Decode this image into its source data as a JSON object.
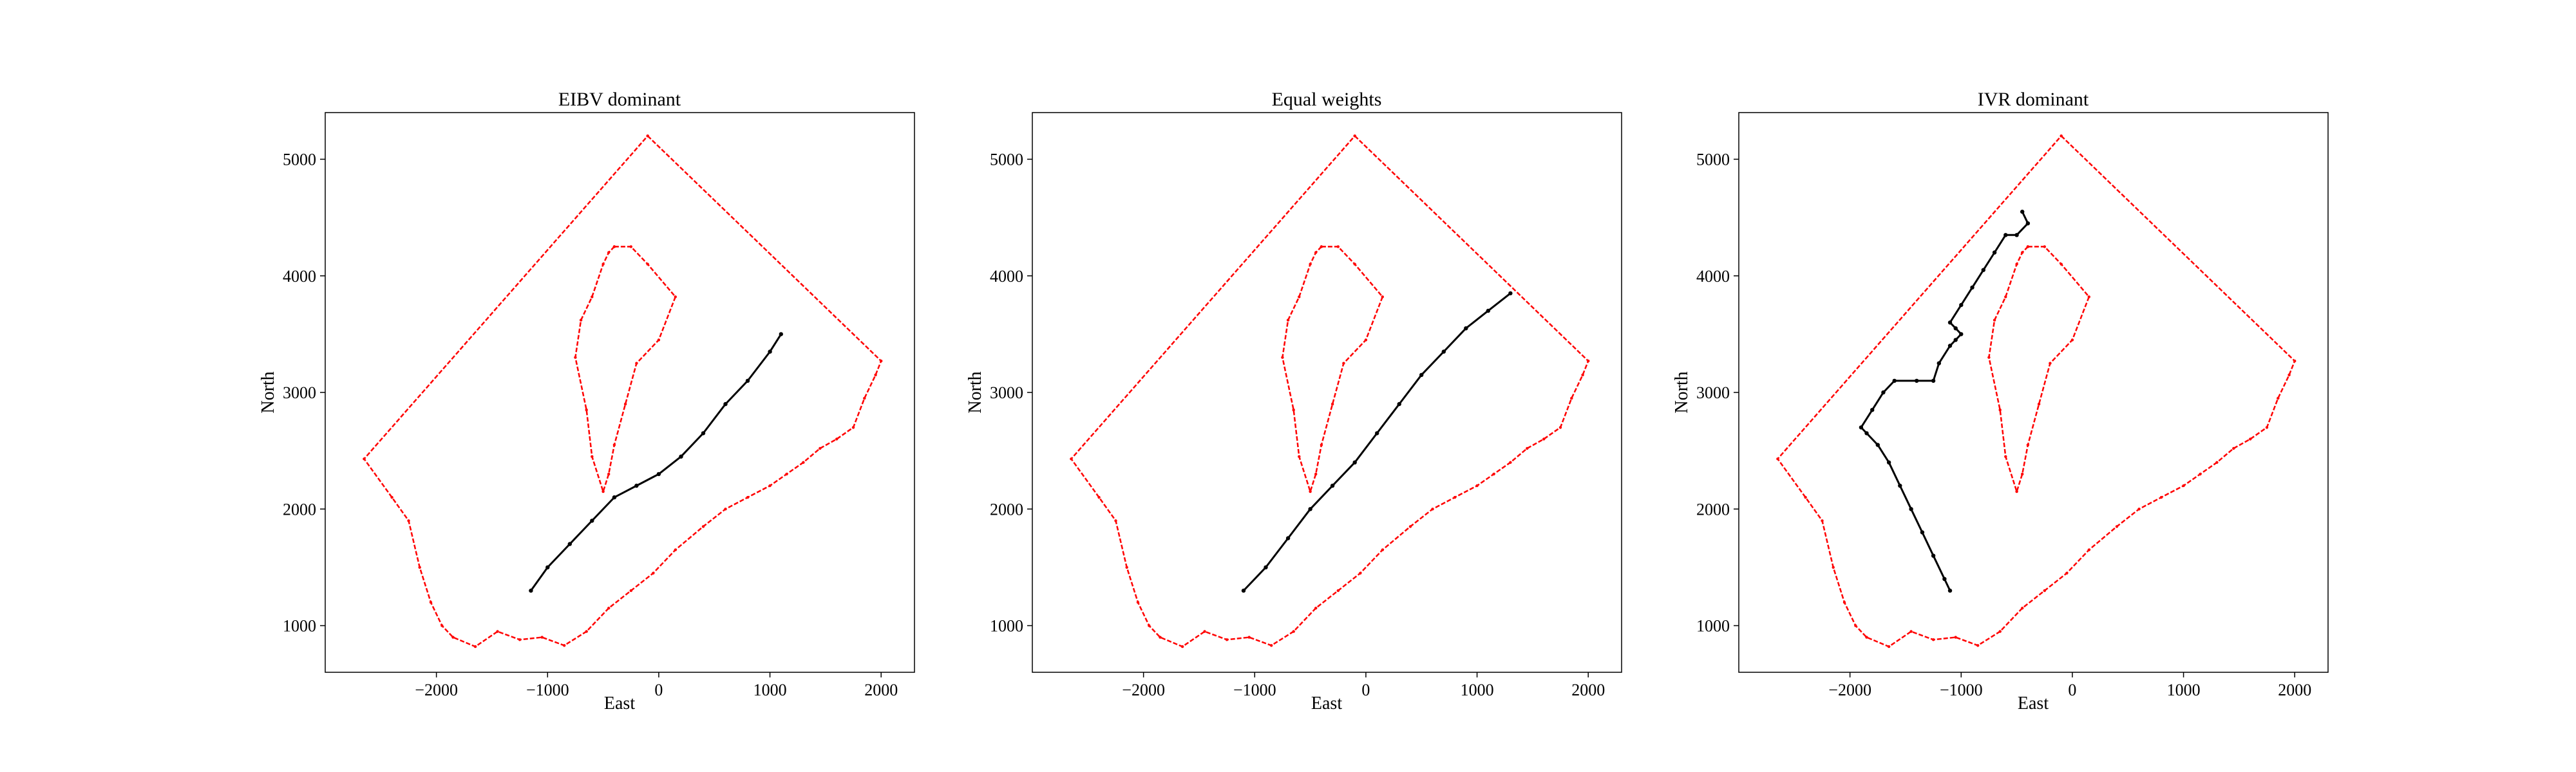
{
  "figure": {
    "background": "#ffffff"
  },
  "chart_data": [
    {
      "type": "line",
      "title": "EIBV dominant",
      "xlabel": "East",
      "ylabel": "North",
      "xlim": [
        -3000,
        2300
      ],
      "ylim": [
        600,
        5400
      ],
      "xticks": [
        -2000,
        -1000,
        0,
        1000,
        2000
      ],
      "yticks": [
        1000,
        2000,
        3000,
        4000,
        5000
      ],
      "xtick_labels": [
        "−2000",
        "−1000",
        "0",
        "1000",
        "2000"
      ],
      "ytick_labels": [
        "1000",
        "2000",
        "3000",
        "4000",
        "5000"
      ],
      "grid": false,
      "colors": {
        "boundary": "#ff0000",
        "path": "#000000"
      },
      "series": [
        {
          "role": "outer-boundary",
          "color": "#ff0000",
          "x": [
            -100,
            2000,
            1950,
            1850,
            1750,
            1600,
            1450,
            1300,
            1150,
            1000,
            800,
            600,
            400,
            150,
            -50,
            -250,
            -450,
            -650,
            -850,
            -1050,
            -1250,
            -1450,
            -1650,
            -1850,
            -1950,
            -2050,
            -2150,
            -2250,
            -2400,
            -2650,
            -100
          ],
          "y": [
            5200,
            3270,
            3150,
            2950,
            2700,
            2600,
            2520,
            2400,
            2300,
            2200,
            2100,
            2000,
            1850,
            1650,
            1450,
            1300,
            1150,
            950,
            830,
            900,
            880,
            950,
            820,
            900,
            1000,
            1200,
            1500,
            1900,
            2100,
            2430,
            5200
          ]
        },
        {
          "role": "inner-boundary",
          "color": "#ff0000",
          "x": [
            -400,
            -250,
            -100,
            150,
            0,
            -200,
            -300,
            -400,
            -450,
            -500,
            -600,
            -650,
            -750,
            -700,
            -600,
            -500,
            -450,
            -400
          ],
          "y": [
            4250,
            4250,
            4100,
            3820,
            3450,
            3250,
            2900,
            2550,
            2300,
            2150,
            2450,
            2850,
            3300,
            3620,
            3820,
            4100,
            4200,
            4250
          ]
        },
        {
          "role": "planned-path",
          "color": "#000000",
          "x": [
            -1150,
            -1000,
            -800,
            -600,
            -400,
            -200,
            0,
            200,
            400,
            600,
            800,
            1000,
            1100
          ],
          "y": [
            1300,
            1500,
            1700,
            1900,
            2100,
            2200,
            2300,
            2450,
            2650,
            2900,
            3100,
            3350,
            3500
          ]
        }
      ]
    },
    {
      "type": "line",
      "title": "Equal weights",
      "xlabel": "East",
      "ylabel": "North",
      "xlim": [
        -3000,
        2300
      ],
      "ylim": [
        600,
        5400
      ],
      "xticks": [
        -2000,
        -1000,
        0,
        1000,
        2000
      ],
      "yticks": [
        1000,
        2000,
        3000,
        4000,
        5000
      ],
      "xtick_labels": [
        "−2000",
        "−1000",
        "0",
        "1000",
        "2000"
      ],
      "ytick_labels": [
        "1000",
        "2000",
        "3000",
        "4000",
        "5000"
      ],
      "grid": false,
      "colors": {
        "boundary": "#ff0000",
        "path": "#000000"
      },
      "series": [
        {
          "role": "outer-boundary",
          "color": "#ff0000",
          "x": [
            -100,
            2000,
            1950,
            1850,
            1750,
            1600,
            1450,
            1300,
            1150,
            1000,
            800,
            600,
            400,
            150,
            -50,
            -250,
            -450,
            -650,
            -850,
            -1050,
            -1250,
            -1450,
            -1650,
            -1850,
            -1950,
            -2050,
            -2150,
            -2250,
            -2400,
            -2650,
            -100
          ],
          "y": [
            5200,
            3270,
            3150,
            2950,
            2700,
            2600,
            2520,
            2400,
            2300,
            2200,
            2100,
            2000,
            1850,
            1650,
            1450,
            1300,
            1150,
            950,
            830,
            900,
            880,
            950,
            820,
            900,
            1000,
            1200,
            1500,
            1900,
            2100,
            2430,
            5200
          ]
        },
        {
          "role": "inner-boundary",
          "color": "#ff0000",
          "x": [
            -400,
            -250,
            -100,
            150,
            0,
            -200,
            -300,
            -400,
            -450,
            -500,
            -600,
            -650,
            -750,
            -700,
            -600,
            -500,
            -450,
            -400
          ],
          "y": [
            4250,
            4250,
            4100,
            3820,
            3450,
            3250,
            2900,
            2550,
            2300,
            2150,
            2450,
            2850,
            3300,
            3620,
            3820,
            4100,
            4200,
            4250
          ]
        },
        {
          "role": "planned-path",
          "color": "#000000",
          "x": [
            -1100,
            -900,
            -700,
            -500,
            -300,
            -100,
            100,
            300,
            500,
            700,
            900,
            1100,
            1300
          ],
          "y": [
            1300,
            1500,
            1750,
            2000,
            2200,
            2400,
            2650,
            2900,
            3150,
            3350,
            3550,
            3700,
            3850
          ]
        }
      ]
    },
    {
      "type": "line",
      "title": "IVR dominant",
      "xlabel": "East",
      "ylabel": "North",
      "xlim": [
        -3000,
        2300
      ],
      "ylim": [
        600,
        5400
      ],
      "xticks": [
        -2000,
        -1000,
        0,
        1000,
        2000
      ],
      "yticks": [
        1000,
        2000,
        3000,
        4000,
        5000
      ],
      "xtick_labels": [
        "−2000",
        "−1000",
        "0",
        "1000",
        "2000"
      ],
      "ytick_labels": [
        "1000",
        "2000",
        "3000",
        "4000",
        "5000"
      ],
      "grid": false,
      "colors": {
        "boundary": "#ff0000",
        "path": "#000000"
      },
      "series": [
        {
          "role": "outer-boundary",
          "color": "#ff0000",
          "x": [
            -100,
            2000,
            1950,
            1850,
            1750,
            1600,
            1450,
            1300,
            1150,
            1000,
            800,
            600,
            400,
            150,
            -50,
            -250,
            -450,
            -650,
            -850,
            -1050,
            -1250,
            -1450,
            -1650,
            -1850,
            -1950,
            -2050,
            -2150,
            -2250,
            -2400,
            -2650,
            -100
          ],
          "y": [
            5200,
            3270,
            3150,
            2950,
            2700,
            2600,
            2520,
            2400,
            2300,
            2200,
            2100,
            2000,
            1850,
            1650,
            1450,
            1300,
            1150,
            950,
            830,
            900,
            880,
            950,
            820,
            900,
            1000,
            1200,
            1500,
            1900,
            2100,
            2430,
            5200
          ]
        },
        {
          "role": "inner-boundary",
          "color": "#ff0000",
          "x": [
            -400,
            -250,
            -100,
            150,
            0,
            -200,
            -300,
            -400,
            -450,
            -500,
            -600,
            -650,
            -750,
            -700,
            -600,
            -500,
            -450,
            -400
          ],
          "y": [
            4250,
            4250,
            4100,
            3820,
            3450,
            3250,
            2900,
            2550,
            2300,
            2150,
            2450,
            2850,
            3300,
            3620,
            3820,
            4100,
            4200,
            4250
          ]
        },
        {
          "role": "planned-path",
          "color": "#000000",
          "x": [
            -1100,
            -1150,
            -1250,
            -1350,
            -1450,
            -1550,
            -1650,
            -1750,
            -1850,
            -1900,
            -1800,
            -1700,
            -1600,
            -1400,
            -1250,
            -1200,
            -1100,
            -1050,
            -1000,
            -1050,
            -1100,
            -1000,
            -900,
            -800,
            -700,
            -600,
            -500,
            -400,
            -450
          ],
          "y": [
            1300,
            1400,
            1600,
            1800,
            2000,
            2200,
            2400,
            2550,
            2650,
            2700,
            2850,
            3000,
            3100,
            3100,
            3100,
            3250,
            3400,
            3450,
            3500,
            3550,
            3600,
            3750,
            3900,
            4050,
            4200,
            4350,
            4350,
            4450,
            4550
          ]
        }
      ]
    }
  ]
}
